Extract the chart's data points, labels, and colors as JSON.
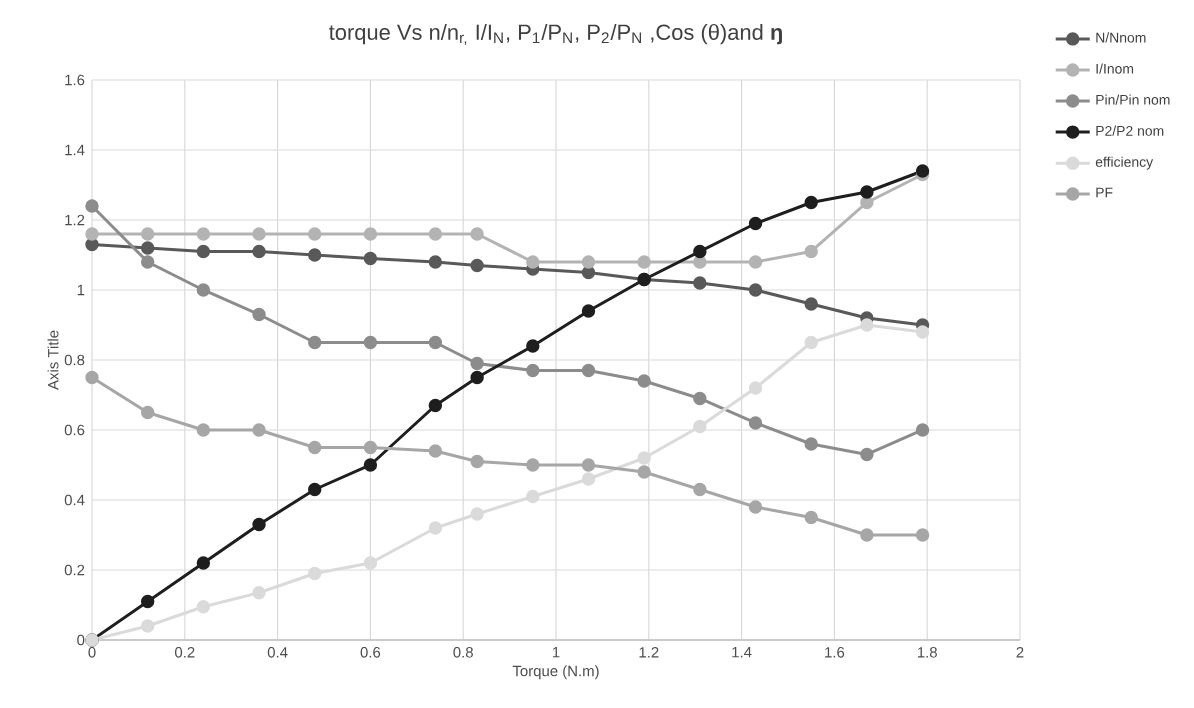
{
  "chart_data": {
    "type": "line",
    "title": "torque Vs n/n$_{r,}$ I/I$_{N}$, P$_{1}$/P$_{N}$, P$_{2}$/P$_{N}$ ,Cos (θ)and **ŋ**",
    "xlabel": "Torque (N.m)",
    "ylabel": "Axis Title",
    "x": [
      0,
      0.12,
      0.24,
      0.36,
      0.48,
      0.6,
      0.74,
      0.83,
      0.95,
      1.07,
      1.19,
      1.31,
      1.43,
      1.55,
      1.67,
      1.79
    ],
    "series": [
      {
        "name": "N/Nnom",
        "color": "#595959",
        "values": [
          1.13,
          1.12,
          1.11,
          1.11,
          1.1,
          1.09,
          1.08,
          1.07,
          1.06,
          1.05,
          1.03,
          1.02,
          1.0,
          0.96,
          0.92,
          0.9
        ]
      },
      {
        "name": "I/Inom",
        "color": "#b3b3b3",
        "values": [
          1.16,
          1.16,
          1.16,
          1.16,
          1.16,
          1.16,
          1.16,
          1.16,
          1.08,
          1.08,
          1.08,
          1.08,
          1.08,
          1.11,
          1.25,
          1.33
        ]
      },
      {
        "name": "Pin/Pin nom",
        "color": "#8c8c8c",
        "values": [
          1.24,
          1.08,
          1.0,
          0.93,
          0.85,
          0.85,
          0.85,
          0.79,
          0.77,
          0.77,
          0.74,
          0.69,
          0.62,
          0.56,
          0.53,
          0.6
        ]
      },
      {
        "name": "P2/P2 nom",
        "color": "#1e1e1e",
        "values": [
          0,
          0.11,
          0.22,
          0.33,
          0.43,
          0.5,
          0.67,
          0.75,
          0.84,
          0.94,
          1.03,
          1.11,
          1.19,
          1.25,
          1.28,
          1.34
        ]
      },
      {
        "name": "efficiency",
        "color": "#dadada",
        "values": [
          0,
          0.04,
          0.095,
          0.135,
          0.19,
          0.22,
          0.32,
          0.36,
          0.41,
          0.46,
          0.52,
          0.61,
          0.72,
          0.85,
          0.9,
          0.88
        ]
      },
      {
        "name": "PF",
        "color": "#a6a6a6",
        "values": [
          0.75,
          0.65,
          0.6,
          0.6,
          0.55,
          0.55,
          0.54,
          0.51,
          0.5,
          0.5,
          0.48,
          0.43,
          0.38,
          0.35,
          0.3,
          0.3
        ]
      }
    ],
    "xlim": [
      0,
      2
    ],
    "xticks": [
      0,
      0.2,
      0.4,
      0.6,
      0.8,
      1,
      1.2,
      1.4,
      1.6,
      1.8,
      2
    ],
    "ylim": [
      0,
      1.6
    ],
    "yticks": [
      0,
      0.2,
      0.4,
      0.6,
      0.8,
      1,
      1.2,
      1.4,
      1.6
    ],
    "grid": true,
    "legend": "top right",
    "marker": "circle",
    "line_style": "solid"
  }
}
